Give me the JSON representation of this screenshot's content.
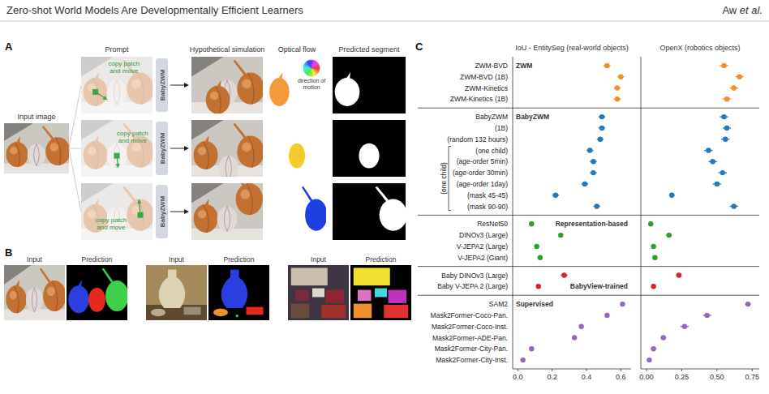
{
  "header": {
    "title": "Zero-shot World Models Are Developmentally Efficient Learners",
    "authors": "Aw et al."
  },
  "panel_a": {
    "label": "A",
    "input_label": "Input image",
    "column_heads": [
      "Prompt",
      "Hypothetical simulation",
      "Optical flow",
      "Predicted segment"
    ],
    "flow_key": "direction of motion",
    "rows": [
      {
        "model": "BabyZWM",
        "prompt": "copy patch and move"
      },
      {
        "model": "BabyZWM",
        "prompt": "copy patch and move"
      },
      {
        "model": "BabyZWM",
        "prompt": "copy patch and move"
      }
    ]
  },
  "panel_b": {
    "label": "B",
    "pairs": [
      {
        "input": "Input",
        "output": "Prediction"
      },
      {
        "input": "Input",
        "output": "Prediction"
      },
      {
        "input": "Input",
        "output": "Prediction"
      }
    ]
  },
  "panel_c": {
    "label": "C"
  },
  "chart_data": [
    {
      "type": "dot",
      "title": "IoU - EntitySeg (real-world objects)",
      "xlim": [
        -0.03,
        0.66
      ],
      "xticks": [
        {
          "value": 0,
          "label": "0.0"
        },
        {
          "value": 0.2,
          "label": "0.2"
        },
        {
          "value": 0.4,
          "label": "0.4"
        },
        {
          "value": 0.6,
          "label": "0.6"
        }
      ],
      "grid": false,
      "annotations": [
        {
          "text": "(one child)",
          "from": "(one child)",
          "to": "(mask 90-90)"
        }
      ],
      "series": [
        {
          "name": "ZWM",
          "color": "#f28e2b",
          "categories": [
            "ZWM-BVD",
            "ZWM-BVD (1B)",
            "ZWM-Kinetics",
            "ZWM-Kinetics (1B)"
          ],
          "values": [
            0.52,
            0.6,
            0.58,
            0.58
          ],
          "errors": [
            0.02,
            0.02,
            0.02,
            0.02
          ]
        },
        {
          "name": "BabyZWM",
          "color": "#2878b8",
          "categories": [
            "BabyZWM",
            "(1B)",
            "(random 132 hours)",
            "(one child)",
            "(age-order 5min)",
            "(age-order 30min)",
            "(age-order 1day)",
            "(mask 45-45)",
            "(mask 90-90)"
          ],
          "values": [
            0.49,
            0.49,
            0.48,
            0.42,
            0.44,
            0.44,
            0.39,
            0.22,
            0.46
          ],
          "errors": [
            0.02,
            0.02,
            0.02,
            0.02,
            0.02,
            0.02,
            0.02,
            0.02,
            0.02
          ]
        },
        {
          "name": "Representation-based",
          "color": "#2ca02c",
          "categories": [
            "ResNet50",
            "DINOv3 (Large)",
            "V-JEPA2 (Large)",
            "V-JEPA2 (Giant)"
          ],
          "values": [
            0.08,
            0.25,
            0.11,
            0.13
          ],
          "errors": [
            0.01,
            0.01,
            0.01,
            0.01
          ]
        },
        {
          "name": "BabyView-trained",
          "color": "#d62728",
          "categories": [
            "Baby DINOv3 (Large)",
            "Baby V-JEPA 2 (Large)"
          ],
          "values": [
            0.27,
            0.12
          ],
          "errors": [
            0.02,
            0.01
          ]
        },
        {
          "name": "Supervised",
          "color": "#9467bd",
          "categories": [
            "SAM2",
            "Mask2Former-Coco-Pan.",
            "Mask2Former-Coco-Inst.",
            "Mask2Former-ADE-Pan.",
            "Mask2Former-City-Pan.",
            "Mask2Former-City-Inst."
          ],
          "values": [
            0.61,
            0.52,
            0.37,
            0.33,
            0.08,
            0.03
          ],
          "errors": [
            0.01,
            0.01,
            0.01,
            0.01,
            0.01,
            0.01
          ]
        }
      ]
    },
    {
      "type": "dot",
      "title": "OpenX (robotics objects)",
      "xlim": [
        -0.04,
        0.8
      ],
      "xticks": [
        {
          "value": 0,
          "label": "0.00"
        },
        {
          "value": 0.25,
          "label": "0.25"
        },
        {
          "value": 0.5,
          "label": "0.50"
        },
        {
          "value": 0.75,
          "label": "0.75"
        }
      ],
      "grid": false,
      "series": [
        {
          "color": "#f28e2b",
          "values": [
            0.55,
            0.66,
            0.62,
            0.57
          ],
          "errors": [
            0.03,
            0.03,
            0.03,
            0.03
          ]
        },
        {
          "color": "#2878b8",
          "values": [
            0.55,
            0.57,
            0.56,
            0.44,
            0.47,
            0.54,
            0.5,
            0.18,
            0.62
          ],
          "errors": [
            0.03,
            0.03,
            0.03,
            0.03,
            0.03,
            0.03,
            0.03,
            0.02,
            0.03
          ]
        },
        {
          "color": "#2ca02c",
          "values": [
            0.03,
            0.16,
            0.05,
            0.06
          ],
          "errors": [
            0.01,
            0.02,
            0.01,
            0.01
          ]
        },
        {
          "color": "#d62728",
          "values": [
            0.23,
            0.05
          ],
          "errors": [
            0.02,
            0.01
          ]
        },
        {
          "color": "#9467bd",
          "values": [
            0.72,
            0.43,
            0.27,
            0.12,
            0.05,
            0.02
          ],
          "errors": [
            0.02,
            0.03,
            0.03,
            0.02,
            0.02,
            0.01
          ]
        }
      ]
    }
  ]
}
